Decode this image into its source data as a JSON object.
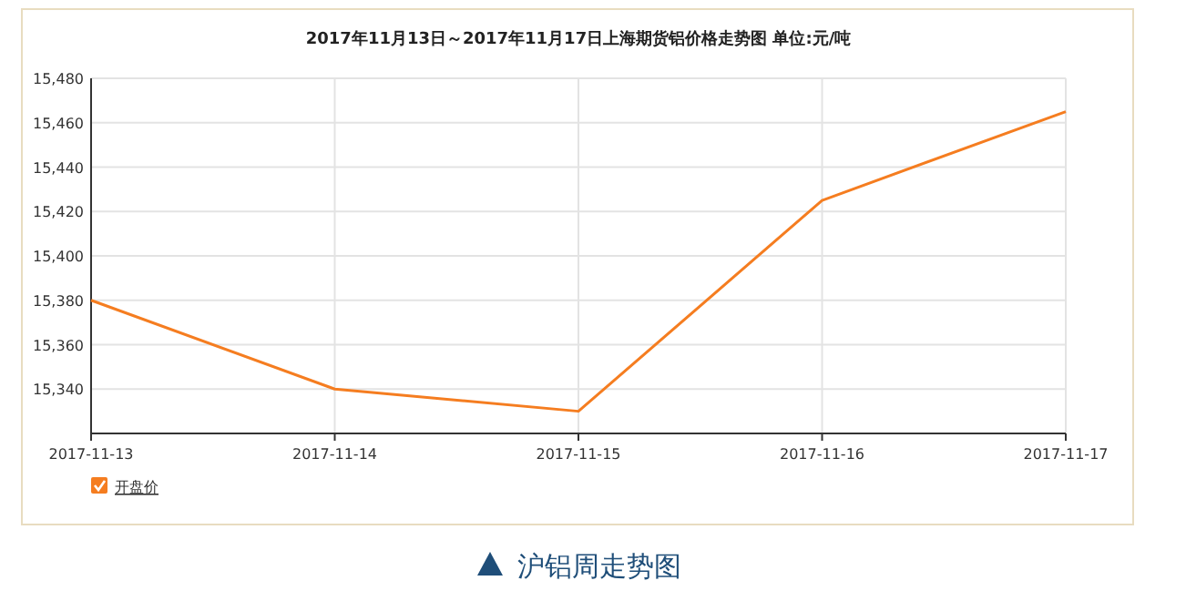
{
  "chart_data": {
    "type": "line",
    "title": "2017年11月13日～2017年11月17日上海期货铝价格走势图 单位:元/吨",
    "categories": [
      "2017-11-13",
      "2017-11-14",
      "2017-11-15",
      "2017-11-16",
      "2017-11-17"
    ],
    "series": [
      {
        "name": "开盘价",
        "color": "#f57d20",
        "values": [
          15380,
          15340,
          15330,
          15425,
          15465
        ]
      }
    ],
    "ylim": [
      15320,
      15480
    ],
    "yticks": [
      {
        "value": 15340,
        "label": "15,340"
      },
      {
        "value": 15360,
        "label": "15,360"
      },
      {
        "value": 15380,
        "label": "15,380"
      },
      {
        "value": 15400,
        "label": "15,400"
      },
      {
        "value": 15420,
        "label": "15,420"
      },
      {
        "value": 15440,
        "label": "15,440"
      },
      {
        "value": 15460,
        "label": "15,460"
      },
      {
        "value": 15480,
        "label": "15,480"
      }
    ],
    "grid": true,
    "legend": "bottom left",
    "marker": "none",
    "line_style": "solid",
    "annotations": [
      "沪铝周走势图"
    ]
  }
}
